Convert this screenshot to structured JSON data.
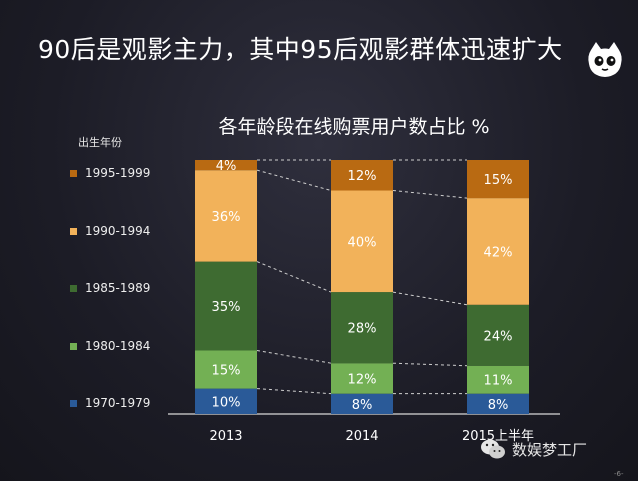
{
  "slide": {
    "title": "90后是观影主力，其中95后观影群体迅速扩大",
    "page_number": "-6-",
    "watermark": "数娱梦工厂"
  },
  "colors": {
    "1995-1999": "#b96a12",
    "1990-1994": "#f2b25a",
    "1985-1989": "#3e6b31",
    "1980-1984": "#73b054",
    "1970-1979": "#2a5a98"
  },
  "chart_data": {
    "type": "bar",
    "stacked": true,
    "title": "各年龄段在线购票用户数占比 %",
    "legend_title": "出生年份",
    "legend_position": "left",
    "categories": [
      "2013",
      "2014",
      "2015上半年"
    ],
    "series": [
      {
        "name": "1970-1979",
        "values": [
          10,
          8,
          8
        ],
        "labels": [
          "10%",
          "8%",
          "8%"
        ]
      },
      {
        "name": "1980-1984",
        "values": [
          15,
          12,
          11
        ],
        "labels": [
          "15%",
          "12%",
          "11%"
        ]
      },
      {
        "name": "1985-1989",
        "values": [
          35,
          28,
          24
        ],
        "labels": [
          "35%",
          "28%",
          "24%"
        ]
      },
      {
        "name": "1990-1994",
        "values": [
          36,
          40,
          42
        ],
        "labels": [
          "36%",
          "40%",
          "42%"
        ]
      },
      {
        "name": "1995-1999",
        "values": [
          4,
          12,
          15
        ],
        "labels": [
          "4%",
          "12%",
          "15%"
        ]
      }
    ],
    "ylim": [
      0,
      100
    ]
  }
}
